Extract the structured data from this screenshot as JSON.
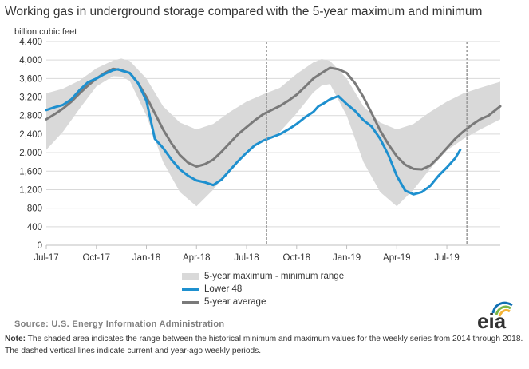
{
  "title": "Working gas in underground  storage compared with the 5-year maximum and minimum",
  "unit_label": "billion cubic feet",
  "legend": {
    "range": "5-year maximum - minimum range",
    "lower48": "Lower 48",
    "avg": "5-year average"
  },
  "source": "Source:  U.S. Energy Information Administration",
  "note_label": "Note:",
  "note_text": " The shaded area indicates the range between the historical minimum and maximum values for the weekly series from 2014 through 2018. The dashed vertical lines indicate current and year-ago weekly periods.",
  "logo_text": "eia",
  "colors": {
    "band": "#d9d9d9",
    "lower48": "#1e90cf",
    "avg": "#7a7a7a",
    "grid": "#d9d9d9",
    "dashed": "#9a9a9a",
    "logo_blue": "#0f6fb3",
    "logo_green": "#7ab648",
    "logo_yellow": "#f5b335"
  },
  "chart_data": {
    "type": "area",
    "ylim": [
      0,
      4400
    ],
    "yticks": [
      0,
      400,
      800,
      1200,
      1600,
      2000,
      2400,
      2800,
      3200,
      3600,
      4000,
      4400
    ],
    "ytick_labels": [
      "0",
      "400",
      "800",
      "1,200",
      "1,600",
      "2,000",
      "2,400",
      "2,800",
      "3,200",
      "3,600",
      "4,000",
      "4,400"
    ],
    "xlim": [
      0,
      27.2
    ],
    "xticks": [
      0,
      3,
      6,
      9,
      12,
      15,
      18,
      21,
      24
    ],
    "xtick_labels": [
      "Jul-17",
      "Oct-17",
      "Jan-18",
      "Apr-18",
      "Jul-18",
      "Oct-18",
      "Jan-19",
      "Apr-19",
      "Jul-19"
    ],
    "x_unit_note": "x in months since start of axis (Jul-17)",
    "dashed_lines_x": [
      13.2,
      25.2
    ],
    "series": [
      {
        "name": "5-year maximum - minimum range",
        "kind": "band",
        "x": [
          0,
          1,
          2,
          3,
          4,
          4.5,
          5,
          6,
          7,
          8,
          9,
          10,
          11,
          12,
          13,
          14,
          15,
          16,
          16.5,
          17,
          18,
          19,
          20,
          21,
          22,
          23,
          24,
          25,
          26,
          27.2
        ],
        "upper": [
          3280,
          3380,
          3560,
          3820,
          3990,
          4030,
          3980,
          3600,
          3000,
          2650,
          2500,
          2620,
          2880,
          3100,
          3260,
          3400,
          3700,
          3950,
          4020,
          3980,
          3600,
          3000,
          2650,
          2500,
          2620,
          2880,
          3100,
          3280,
          3400,
          3530
        ],
        "lower": [
          2060,
          2450,
          2950,
          3430,
          3650,
          3640,
          3550,
          2800,
          1800,
          1150,
          840,
          1200,
          1650,
          2050,
          2230,
          2450,
          2850,
          3300,
          3450,
          3480,
          2800,
          1800,
          1150,
          840,
          1200,
          1650,
          2050,
          2300,
          2500,
          2720
        ]
      },
      {
        "name": "Lower 48",
        "x": [
          0,
          0.5,
          1,
          1.5,
          2,
          2.5,
          3,
          3.5,
          4,
          4.3,
          4.6,
          5,
          5.5,
          6,
          6.5,
          7,
          7.5,
          8,
          8.5,
          9,
          9.5,
          10,
          10.5,
          11,
          11.5,
          12,
          12.5,
          13,
          13.5,
          14,
          14.5,
          15,
          15.5,
          16,
          16.3,
          16.6,
          17,
          17.5,
          18,
          18.5,
          19,
          19.5,
          20,
          20.5,
          21,
          21.5,
          22,
          22.5,
          23,
          23.5,
          24,
          24.5,
          24.8
        ],
        "y": [
          2920,
          2980,
          3030,
          3150,
          3350,
          3520,
          3600,
          3700,
          3780,
          3800,
          3760,
          3720,
          3500,
          3120,
          2300,
          2100,
          1850,
          1640,
          1500,
          1400,
          1360,
          1300,
          1420,
          1620,
          1820,
          2000,
          2160,
          2260,
          2330,
          2400,
          2500,
          2620,
          2760,
          2880,
          3000,
          3060,
          3150,
          3220,
          3050,
          2900,
          2700,
          2560,
          2300,
          1950,
          1500,
          1180,
          1100,
          1150,
          1280,
          1500,
          1680,
          1880,
          2060
        ]
      },
      {
        "name": "5-year average",
        "x": [
          0,
          0.5,
          1,
          1.5,
          2,
          2.5,
          3,
          3.5,
          4,
          4.5,
          5,
          5.5,
          6,
          6.5,
          7,
          7.5,
          8,
          8.5,
          9,
          9.5,
          10,
          10.5,
          11,
          11.5,
          12,
          12.5,
          13,
          13.5,
          14,
          14.5,
          15,
          15.5,
          16,
          16.5,
          17,
          17.5,
          18,
          18.5,
          19,
          19.5,
          20,
          20.5,
          21,
          21.5,
          22,
          22.5,
          23,
          23.5,
          24,
          24.5,
          25,
          25.5,
          26,
          26.5,
          27.2
        ],
        "y": [
          2720,
          2830,
          2950,
          3100,
          3280,
          3450,
          3600,
          3720,
          3810,
          3780,
          3720,
          3500,
          3200,
          2850,
          2500,
          2200,
          1950,
          1780,
          1700,
          1750,
          1850,
          2020,
          2210,
          2400,
          2550,
          2700,
          2830,
          2920,
          3010,
          3120,
          3250,
          3420,
          3600,
          3720,
          3830,
          3800,
          3720,
          3500,
          3200,
          2850,
          2480,
          2180,
          1920,
          1740,
          1650,
          1640,
          1720,
          1900,
          2100,
          2300,
          2460,
          2600,
          2720,
          2800,
          3000
        ]
      }
    ],
    "grid": "horizontal",
    "legend_position": "bottom-center"
  }
}
